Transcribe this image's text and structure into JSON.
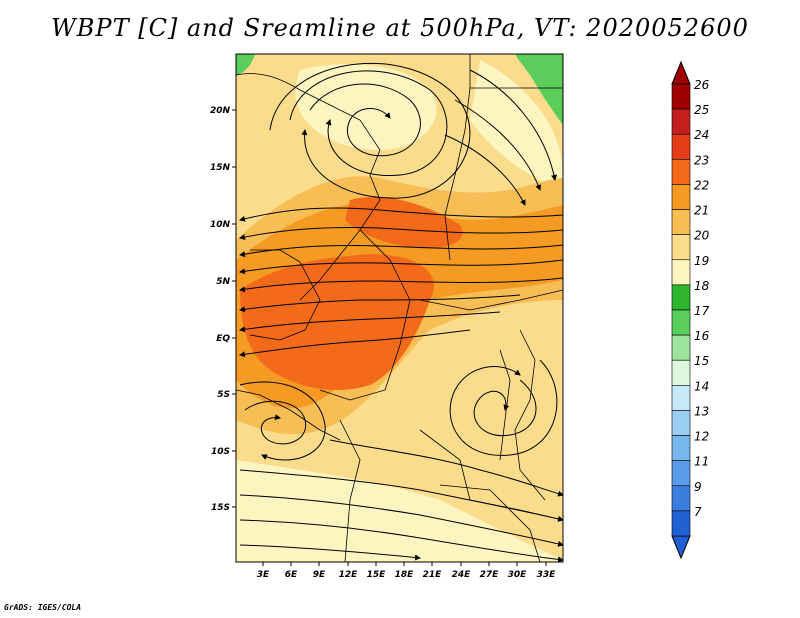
{
  "title": "WBPT [C] and Sreamline at 500hPa, VT: 2020052600",
  "credit": "GrADS: IGES/COLA",
  "map": {
    "lat_labels": [
      "20N",
      "15N",
      "10N",
      "5N",
      "EQ",
      "5S",
      "10S",
      "15S"
    ],
    "lon_labels": [
      "3E",
      "6E",
      "9E",
      "12E",
      "15E",
      "18E",
      "21E",
      "24E",
      "27E",
      "30E",
      "33E"
    ],
    "variable": "Wet-bulb potential temperature at 500hPa",
    "unit": "C",
    "valid_time": "2020052600"
  },
  "colorbar": {
    "levels": [
      "26",
      "25",
      "24",
      "23",
      "22",
      "21",
      "20",
      "19",
      "18",
      "17",
      "16",
      "15",
      "14",
      "13",
      "12",
      "11",
      "9",
      "7"
    ],
    "colors": [
      "#a00000",
      "#c41e1e",
      "#e53d1a",
      "#f26a1a",
      "#f59a22",
      "#f7be55",
      "#fadc8c",
      "#fcf5c0",
      "#2fb42f",
      "#5acd5a",
      "#9ee49e",
      "#def7df",
      "#c7e8f8",
      "#9ccdf2",
      "#78b6ee",
      "#5a9ce8",
      "#3c7ede",
      "#2060d2"
    ]
  }
}
